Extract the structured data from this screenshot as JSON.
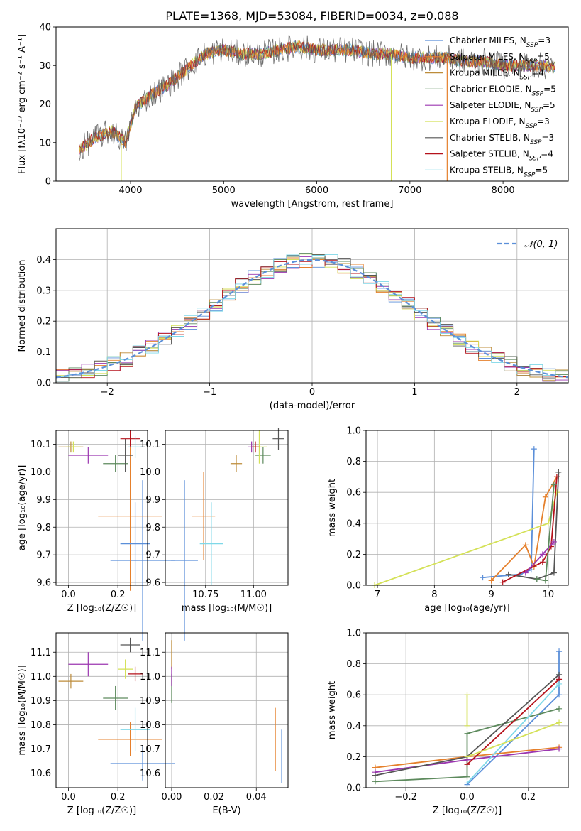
{
  "title": "PLATE=1368, MJD=53084, FIBERID=0034, z=0.088",
  "series": [
    {
      "name": "Chabrier MILES",
      "nssp": "3",
      "color": "#5b8fd9"
    },
    {
      "name": "Salpeter MILES",
      "nssp": "5",
      "color": "#e5802c"
    },
    {
      "name": "Kroupa MILES",
      "nssp": "4",
      "color": "#bd8c3a"
    },
    {
      "name": "Chabrier ELODIE",
      "nssp": "5",
      "color": "#5d8a5d"
    },
    {
      "name": "Salpeter ELODIE",
      "nssp": "5",
      "color": "#9b36b0"
    },
    {
      "name": "Kroupa ELODIE",
      "nssp": "3",
      "color": "#d4e157"
    },
    {
      "name": "Chabrier STELIB",
      "nssp": "3",
      "color": "#555555"
    },
    {
      "name": "Salpeter STELIB",
      "nssp": "4",
      "color": "#b5121b"
    },
    {
      "name": "Kroupa STELIB",
      "nssp": "5",
      "color": "#7fd8e8"
    }
  ],
  "chart_data": [
    {
      "id": "spectrum",
      "type": "line",
      "xlabel": "wavelength [Angstrom, rest frame]",
      "ylabel": "Flux [fλ10⁻¹⁷ erg cm⁻² s⁻¹ A⁻¹]",
      "xlim": [
        3200,
        8700
      ],
      "ylim": [
        0,
        40
      ],
      "xticks": [
        4000,
        5000,
        6000,
        7000,
        8000
      ],
      "yticks": [
        0,
        10,
        20,
        30,
        40
      ],
      "legend": "right",
      "continuum": {
        "x": [
          3450,
          3600,
          3800,
          3950,
          4050,
          4200,
          4400,
          4600,
          4800,
          5000,
          5200,
          5400,
          5600,
          5800,
          6000,
          6200,
          6400,
          6600,
          6800,
          7000,
          7200,
          7400,
          7600,
          7800,
          8000,
          8200,
          8400,
          8700
        ],
        "y": [
          8,
          11,
          13,
          10,
          19,
          22,
          25,
          29,
          33,
          34,
          33,
          33,
          34,
          35,
          34,
          34,
          34,
          33,
          33,
          32,
          32,
          32,
          31,
          31,
          30,
          30,
          30,
          29
        ]
      },
      "drops": [
        {
          "series": "Kroupa ELODIE",
          "x": 3900,
          "y": 0
        },
        {
          "series": "Kroupa ELODIE",
          "x": 6800,
          "y": 0
        },
        {
          "series": "Salpeter MILES",
          "x": 7400,
          "y": 0
        }
      ]
    },
    {
      "id": "residuals",
      "type": "line",
      "xlabel": "(data-model)/error",
      "ylabel": "Normed distribution",
      "xlim": [
        -2.5,
        2.5
      ],
      "ylim": [
        0,
        0.5
      ],
      "xticks": [
        -2,
        -1,
        0,
        1,
        2
      ],
      "yticks": [
        0.0,
        0.1,
        0.2,
        0.3,
        0.4
      ],
      "grid": true,
      "legend": "top-right",
      "normal_label": "𝒩(0, 1)",
      "normal_color": "#5b8fd9"
    },
    {
      "id": "age-vs-Z",
      "type": "scatter",
      "xlabel": "Z [log₁₀(Z/Z☉)]",
      "ylabel": "age  [log₁₀(age/yr)]",
      "xlim": [
        -0.05,
        0.32
      ],
      "ylim": [
        9.59,
        10.15
      ],
      "xticks": [
        0.0,
        0.2
      ],
      "yticks": [
        9.6,
        9.7,
        9.8,
        9.9,
        10.0,
        10.1
      ],
      "grid": true,
      "points": [
        {
          "x": 0.3,
          "y": 9.68,
          "xerr": 0.13,
          "yerr": 0.29
        },
        {
          "x": 0.25,
          "y": 9.84,
          "xerr": 0.13,
          "yerr": 0.27
        },
        {
          "x": 0.01,
          "y": 10.09,
          "xerr": 0.05,
          "yerr": 0.02
        },
        {
          "x": 0.19,
          "y": 10.03,
          "xerr": 0.05,
          "yerr": 0.03
        },
        {
          "x": 0.08,
          "y": 10.06,
          "xerr": 0.08,
          "yerr": 0.03
        },
        {
          "x": 0.02,
          "y": 10.09,
          "xerr": 0.03,
          "yerr": 0.02
        },
        {
          "x": 0.23,
          "y": 10.06,
          "xerr": 0.03,
          "yerr": 0.06
        },
        {
          "x": 0.25,
          "y": 10.12,
          "xerr": 0.04,
          "yerr": 0.03
        },
        {
          "x": 0.27,
          "y": 10.09,
          "xerr": 0.03,
          "yerr": 0.04
        },
        {
          "x": 0.27,
          "y": 9.74,
          "xerr": 0.06,
          "yerr": 0.15
        }
      ]
    },
    {
      "id": "age-vs-mass",
      "type": "scatter",
      "xlabel": "mass [log₁₀(M/M☉)]",
      "xlim": [
        10.54,
        11.18
      ],
      "ylim": [
        9.59,
        10.15
      ],
      "xticks": [
        10.75,
        11.0
      ],
      "yticks": [
        9.6,
        9.7,
        9.8,
        9.9,
        10.0,
        10.1
      ],
      "grid": true,
      "points": [
        {
          "x": 10.64,
          "y": 9.68,
          "xerr": 0.07,
          "yerr": 0.29
        },
        {
          "x": 10.74,
          "y": 9.84,
          "xerr": 0.06,
          "yerr": 0.16
        },
        {
          "x": 10.91,
          "y": 10.03,
          "xerr": 0.03,
          "yerr": 0.03
        },
        {
          "x": 11.05,
          "y": 10.06,
          "xerr": 0.04,
          "yerr": 0.03
        },
        {
          "x": 10.99,
          "y": 10.09,
          "xerr": 0.02,
          "yerr": 0.02
        },
        {
          "x": 11.03,
          "y": 10.09,
          "xerr": 0.04,
          "yerr": 0.06
        },
        {
          "x": 11.13,
          "y": 10.12,
          "xerr": 0.03,
          "yerr": 0.04
        },
        {
          "x": 11.01,
          "y": 10.09,
          "xerr": 0.02,
          "yerr": 0.02
        },
        {
          "x": 10.78,
          "y": 9.74,
          "xerr": 0.06,
          "yerr": 0.15
        }
      ]
    },
    {
      "id": "weight-vs-age",
      "type": "line",
      "xlabel": "age  [log₁₀(age/yr)]",
      "ylabel": "mass weight",
      "xlim": [
        6.8,
        10.35
      ],
      "ylim": [
        0,
        1.0
      ],
      "xticks": [
        7,
        8,
        9,
        10
      ],
      "yticks": [
        0.0,
        0.2,
        0.4,
        0.6,
        0.8,
        1.0
      ],
      "grid": true,
      "series": [
        {
          "name": "Chabrier MILES",
          "x": [
            8.85,
            9.5,
            9.7,
            9.75
          ],
          "y": [
            0.05,
            0.07,
            0.1,
            0.88
          ]
        },
        {
          "name": "Salpeter MILES",
          "x": [
            9.0,
            9.6,
            9.75,
            9.95,
            10.15
          ],
          "y": [
            0.03,
            0.26,
            0.12,
            0.57,
            0.7
          ]
        },
        {
          "name": "Kroupa ELODIE",
          "x": [
            6.95,
            10.0,
            10.15
          ],
          "y": [
            0.0,
            0.4,
            0.6
          ]
        },
        {
          "name": "Chabrier STELIB",
          "x": [
            9.3,
            9.8,
            10.1,
            10.18
          ],
          "y": [
            0.07,
            0.04,
            0.08,
            0.73
          ]
        },
        {
          "name": "Salpeter STELIB",
          "x": [
            9.2,
            9.9,
            10.05,
            10.15
          ],
          "y": [
            0.02,
            0.15,
            0.25,
            0.7
          ]
        },
        {
          "name": "Salpeter ELODIE",
          "x": [
            9.6,
            9.9,
            10.1
          ],
          "y": [
            0.08,
            0.2,
            0.28
          ]
        },
        {
          "name": "Chabrier ELODIE",
          "x": [
            9.8,
            9.95,
            10.1
          ],
          "y": [
            0.04,
            0.03,
            0.65
          ]
        }
      ]
    },
    {
      "id": "mass-vs-Z",
      "type": "scatter",
      "xlabel": "Z [log₁₀(Z/Z☉)]",
      "ylabel": "mass [log₁₀(M/M☉)]",
      "xlim": [
        -0.05,
        0.32
      ],
      "ylim": [
        10.54,
        11.18
      ],
      "xticks": [
        0.0,
        0.2
      ],
      "yticks": [
        10.6,
        10.7,
        10.8,
        10.9,
        11.0,
        11.1
      ],
      "grid": true,
      "points": [
        {
          "x": 0.3,
          "y": 10.64,
          "xerr": 0.13,
          "yerr": 0.07
        },
        {
          "x": 0.25,
          "y": 10.74,
          "xerr": 0.13,
          "yerr": 0.07
        },
        {
          "x": 0.01,
          "y": 10.98,
          "xerr": 0.05,
          "yerr": 0.03
        },
        {
          "x": 0.19,
          "y": 10.91,
          "xerr": 0.05,
          "yerr": 0.05
        },
        {
          "x": 0.08,
          "y": 11.05,
          "xerr": 0.08,
          "yerr": 0.05
        },
        {
          "x": 0.23,
          "y": 11.03,
          "xerr": 0.03,
          "yerr": 0.04
        },
        {
          "x": 0.25,
          "y": 11.13,
          "xerr": 0.04,
          "yerr": 0.03
        },
        {
          "x": 0.27,
          "y": 11.01,
          "xerr": 0.03,
          "yerr": 0.03
        },
        {
          "x": 0.27,
          "y": 10.78,
          "xerr": 0.06,
          "yerr": 0.09
        }
      ]
    },
    {
      "id": "mass-vs-ebv",
      "type": "scatter",
      "xlabel": "E(B-V)",
      "xlim": [
        -0.003,
        0.055
      ],
      "ylim": [
        10.54,
        11.18
      ],
      "xticks": [
        0.0,
        0.02,
        0.04
      ],
      "yticks": [
        10.6,
        10.7,
        10.8,
        10.9,
        11.0,
        11.1
      ],
      "grid": true,
      "points": [
        {
          "x": 0.052,
          "y": 10.67,
          "xerr": 0,
          "yerr": 0.11
        },
        {
          "x": 0.049,
          "y": 10.74,
          "xerr": 0,
          "yerr": 0.13
        },
        {
          "x": 0.0,
          "y": 11.09,
          "xerr": 0,
          "yerr": 0.06
        },
        {
          "x": 0.0,
          "y": 10.95,
          "xerr": 0,
          "yerr": 0.06
        },
        {
          "x": 0.0,
          "y": 11.0,
          "xerr": 0,
          "yerr": 0.04
        }
      ]
    },
    {
      "id": "weight-vs-Z",
      "type": "line",
      "xlabel": "Z [log₁₀(Z/Z☉)]",
      "ylabel": "mass weight",
      "xlim": [
        -0.33,
        0.33
      ],
      "ylim": [
        0,
        1.0
      ],
      "xticks": [
        -0.2,
        0.0,
        0.2
      ],
      "yticks": [
        0.0,
        0.2,
        0.4,
        0.6,
        0.8,
        1.0
      ],
      "grid": true,
      "series": [
        {
          "name": "Chabrier MILES",
          "x": [
            0.0,
            0.3,
            0.3
          ],
          "y": [
            0.02,
            0.6,
            0.88
          ]
        },
        {
          "name": "Salpeter MILES",
          "x": [
            -0.3,
            0.0,
            0.3
          ],
          "y": [
            0.13,
            0.2,
            0.26
          ]
        },
        {
          "name": "Chabrier ELODIE",
          "x": [
            -0.3,
            0.0,
            0.0,
            0.3
          ],
          "y": [
            0.04,
            0.07,
            0.35,
            0.51
          ]
        },
        {
          "name": "Salpeter ELODIE",
          "x": [
            -0.3,
            0.0,
            0.3
          ],
          "y": [
            0.1,
            0.18,
            0.25
          ]
        },
        {
          "name": "Kroupa ELODIE",
          "x": [
            0.0,
            0.0
          ],
          "y": [
            0.4,
            0.6
          ]
        },
        {
          "name": "Chabrier STELIB",
          "x": [
            -0.3,
            0.0,
            0.3
          ],
          "y": [
            0.08,
            0.2,
            0.73
          ]
        },
        {
          "name": "Salpeter STELIB",
          "x": [
            0.0,
            0.3
          ],
          "y": [
            0.15,
            0.7
          ]
        },
        {
          "name": "Kroupa STELIB",
          "x": [
            0.0,
            0.3
          ],
          "y": [
            0.03,
            0.67
          ]
        },
        {
          "name": "Kroupa ELODIE",
          "x": [
            0.0,
            0.3
          ],
          "y": [
            0.2,
            0.42
          ]
        }
      ]
    }
  ]
}
